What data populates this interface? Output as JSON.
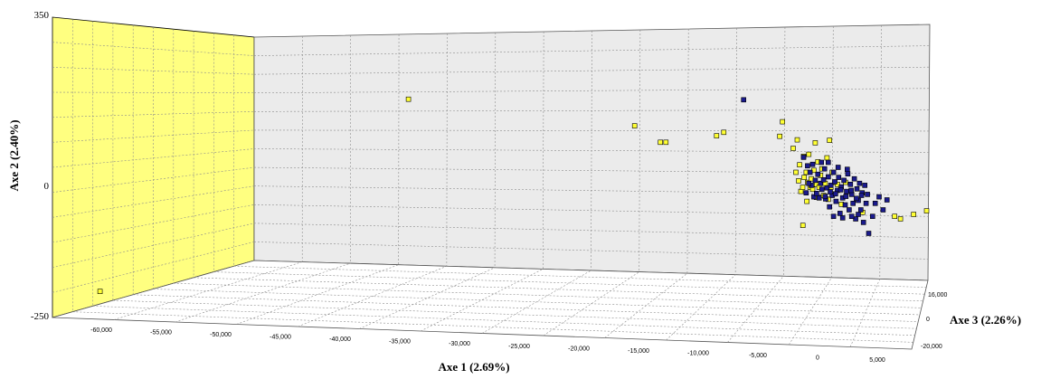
{
  "chart_data": {
    "type": "scatter",
    "title": "",
    "projection": "3d",
    "xlabel": "Axe 1 (2.69%)",
    "ylabel": "Axe 2 (2.40%)",
    "zlabel": "Axe 3 (2.26%)",
    "xlim": [
      -65000,
      9000
    ],
    "ylim": [
      -250,
      350
    ],
    "zlim": [
      -20000,
      16000
    ],
    "x_ticks": [
      "-60,000",
      "-55,000",
      "-50,000",
      "-45,000",
      "-40,000",
      "-35,000",
      "-30,000",
      "-25,000",
      "-20,000",
      "-15,000",
      "-10,000",
      "-5,000",
      "0",
      "5,000"
    ],
    "y_ticks": [
      "350",
      "0",
      "-250"
    ],
    "z_ticks": [
      "16,000",
      "0",
      "-20,000"
    ],
    "grid": true,
    "legend": "none",
    "colors": {
      "back_wall": "#ebebeb",
      "side_wall": "#ffff80",
      "floor": "#ffffff",
      "grid_line": "#8c8c8c",
      "yellow_marker": "#ffff33",
      "blue_marker": "#1a1a8c",
      "marker_edge": "#000000"
    },
    "series": [
      {
        "marker_color": "#ffff33",
        "points": [
          [
            -60985,
            -198,
            -10000
          ],
          [
            -34970,
            186,
            0
          ],
          [
            -15890,
            133,
            0
          ],
          [
            -13720,
            100,
            0
          ],
          [
            -13250,
            100,
            0
          ],
          [
            -8985,
            113,
            0
          ],
          [
            -8370,
            120,
            0
          ],
          [
            -3650,
            112,
            0
          ],
          [
            -3420,
            141,
            0
          ],
          [
            -2520,
            88,
            0
          ],
          [
            -2180,
            105,
            0
          ],
          [
            -1980,
            55,
            0
          ],
          [
            -1640,
            72,
            0
          ],
          [
            -1420,
            40,
            0
          ],
          [
            -1310,
            20,
            0
          ],
          [
            -1200,
            76,
            0
          ],
          [
            -1100,
            10,
            0
          ],
          [
            -990,
            27,
            0
          ],
          [
            -880,
            6,
            0
          ],
          [
            -770,
            44,
            0
          ],
          [
            -660,
            99,
            0
          ],
          [
            -550,
            16,
            0
          ],
          [
            -440,
            61,
            0
          ],
          [
            -330,
            -10,
            0
          ],
          [
            -210,
            34,
            0
          ],
          [
            -100,
            47,
            0
          ],
          [
            40,
            -6,
            0
          ],
          [
            180,
            18,
            0
          ],
          [
            330,
            69,
            0
          ],
          [
            440,
            -14,
            0
          ],
          [
            550,
            104,
            0
          ],
          [
            660,
            10,
            0
          ],
          [
            770,
            40,
            0
          ],
          [
            880,
            -3,
            0
          ],
          [
            990,
            20,
            0
          ],
          [
            1210,
            16,
            0
          ],
          [
            -2290,
            40,
            0
          ],
          [
            -2060,
            23,
            0
          ],
          [
            -1870,
            2,
            0
          ],
          [
            -1720,
            10,
            0
          ],
          [
            -1590,
            30,
            0
          ],
          [
            -1360,
            -18,
            0
          ],
          [
            -560,
            -10,
            0
          ],
          [
            -340,
            10,
            0
          ],
          [
            -1700,
            -66,
            0
          ],
          [
            1550,
            -24,
            0
          ],
          [
            1900,
            20,
            0
          ],
          [
            3340,
            -40,
            0
          ],
          [
            6040,
            -48,
            0
          ],
          [
            6530,
            -53,
            0
          ],
          [
            7640,
            -44,
            0
          ],
          [
            8730,
            -37,
            0
          ]
        ]
      },
      {
        "marker_color": "#1a1a8c",
        "points": [
          [
            -6700,
            185,
            0
          ],
          [
            -1640,
            70,
            0
          ],
          [
            -1310,
            53,
            0
          ],
          [
            -1100,
            40,
            0
          ],
          [
            -880,
            56,
            0
          ],
          [
            -660,
            24,
            0
          ],
          [
            -440,
            36,
            0
          ],
          [
            -210,
            18,
            0
          ],
          [
            -100,
            6,
            0
          ],
          [
            40,
            25,
            0
          ],
          [
            130,
            47,
            0
          ],
          [
            220,
            -13,
            0
          ],
          [
            330,
            9,
            0
          ],
          [
            440,
            31,
            0
          ],
          [
            550,
            -29,
            0
          ],
          [
            660,
            14,
            0
          ],
          [
            770,
            -6,
            0
          ],
          [
            880,
            40,
            0
          ],
          [
            990,
            21,
            0
          ],
          [
            1100,
            -18,
            0
          ],
          [
            1210,
            4,
            0
          ],
          [
            1320,
            30,
            0
          ],
          [
            1430,
            -42,
            0
          ],
          [
            1540,
            11,
            0
          ],
          [
            1650,
            -11,
            0
          ],
          [
            1760,
            24,
            0
          ],
          [
            1870,
            -25,
            0
          ],
          [
            1980,
            2,
            0
          ],
          [
            2090,
            37,
            0
          ],
          [
            2200,
            -35,
            0
          ],
          [
            2310,
            16,
            0
          ],
          [
            2420,
            -4,
            0
          ],
          [
            2530,
            -22,
            0
          ],
          [
            2640,
            27,
            0
          ],
          [
            2750,
            -53,
            0
          ],
          [
            2860,
            7,
            0
          ],
          [
            2970,
            -16,
            0
          ],
          [
            3080,
            18,
            0
          ],
          [
            3190,
            -35,
            0
          ],
          [
            3300,
            -1,
            0
          ],
          [
            3410,
            -60,
            0
          ],
          [
            3520,
            14,
            0
          ],
          [
            3630,
            -22,
            0
          ],
          [
            3740,
            -4,
            0
          ],
          [
            3850,
            -82,
            0
          ],
          [
            4180,
            -48,
            0
          ],
          [
            4400,
            -22,
            0
          ],
          [
            4730,
            -9,
            0
          ],
          [
            5060,
            -35,
            0
          ],
          [
            5390,
            -15,
            0
          ],
          [
            -990,
            14,
            0
          ],
          [
            -770,
            -9,
            0
          ],
          [
            -550,
            -2,
            0
          ],
          [
            -330,
            -11,
            0
          ],
          [
            -1210,
            18,
            0
          ],
          [
            -1430,
            -1,
            0
          ],
          [
            170,
            -8,
            0
          ],
          [
            610,
            1,
            0
          ],
          [
            1050,
            -3,
            0
          ],
          [
            1490,
            5,
            0
          ],
          [
            1930,
            -8,
            0
          ],
          [
            2370,
            4,
            0
          ],
          [
            2810,
            -12,
            0
          ],
          [
            3250,
            -6,
            0
          ],
          [
            -140,
            60,
            0
          ],
          [
            440,
            60,
            0
          ],
          [
            1270,
            50,
            0
          ],
          [
            2040,
            46,
            0
          ],
          [
            880,
            -48,
            0
          ],
          [
            1650,
            -51,
            0
          ],
          [
            2420,
            -48,
            0
          ],
          [
            2970,
            -44,
            0
          ]
        ]
      }
    ]
  }
}
